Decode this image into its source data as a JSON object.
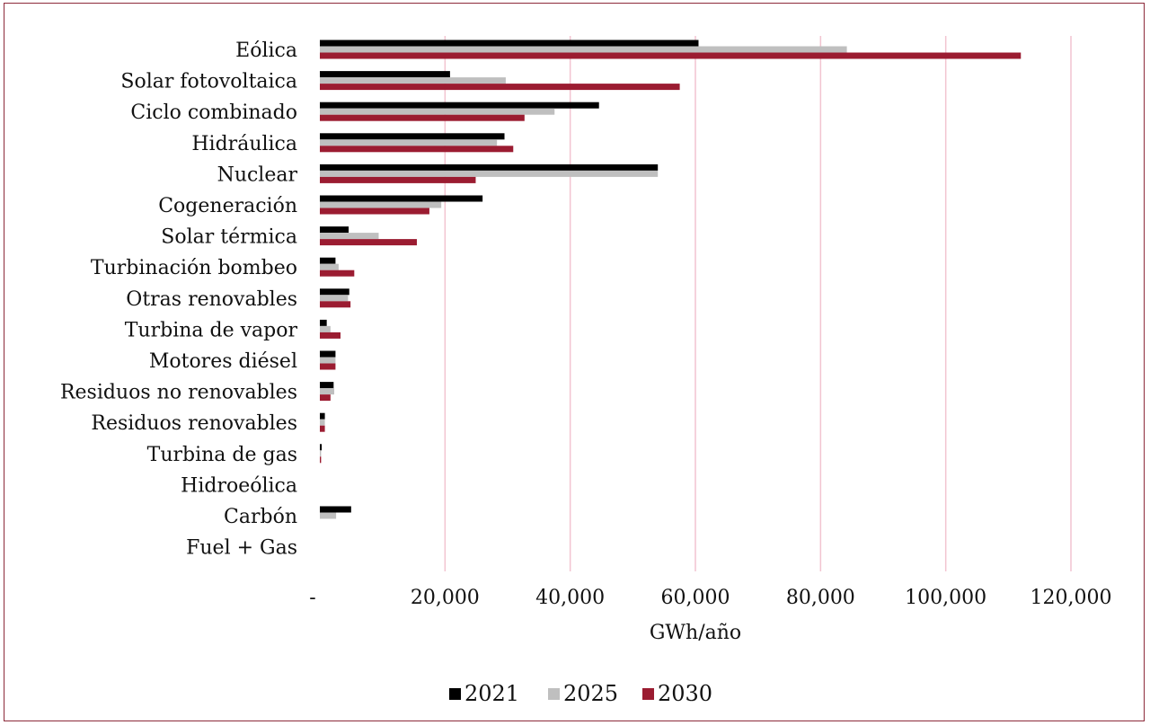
{
  "chart_data": {
    "type": "bar",
    "orientation": "horizontal",
    "categories": [
      "Eólica",
      "Solar fotovoltaica",
      "Ciclo combinado",
      "Hidráulica",
      "Nuclear",
      "Cogeneración",
      "Solar térmica",
      "Turbinación bombeo",
      "Otras renovables",
      "Turbina de vapor",
      "Motores diésel",
      "Residuos no renovables",
      "Residuos renovables",
      "Turbina de gas",
      "Hidroeólica",
      "Carbón",
      "Fuel + Gas"
    ],
    "series": [
      {
        "name": "2021",
        "color": "#000000",
        "values": [
          60500,
          20800,
          44600,
          29500,
          54000,
          26000,
          4600,
          2500,
          4700,
          1100,
          2500,
          2200,
          800,
          300,
          0,
          5000,
          0
        ]
      },
      {
        "name": "2025",
        "color": "#bfbfbf",
        "values": [
          84200,
          29700,
          37500,
          28300,
          54000,
          19400,
          9400,
          3000,
          4500,
          1700,
          2500,
          2300,
          800,
          200,
          0,
          2600,
          0
        ]
      },
      {
        "name": "2030",
        "color": "#9b1c31",
        "values": [
          112000,
          57500,
          32700,
          30900,
          24900,
          17500,
          15500,
          5500,
          4900,
          3300,
          2500,
          1700,
          800,
          200,
          0,
          0,
          0
        ]
      }
    ],
    "xlabel": "GWh/año",
    "ylabel": "",
    "xlim": [
      0,
      120000
    ],
    "x_ticks": [
      "-",
      "20,000",
      "40,000",
      "60,000",
      "80,000",
      "100,000",
      "120,000"
    ],
    "grid": "vertical",
    "grid_color": "#f2c4d0",
    "legend_position": "bottom"
  }
}
